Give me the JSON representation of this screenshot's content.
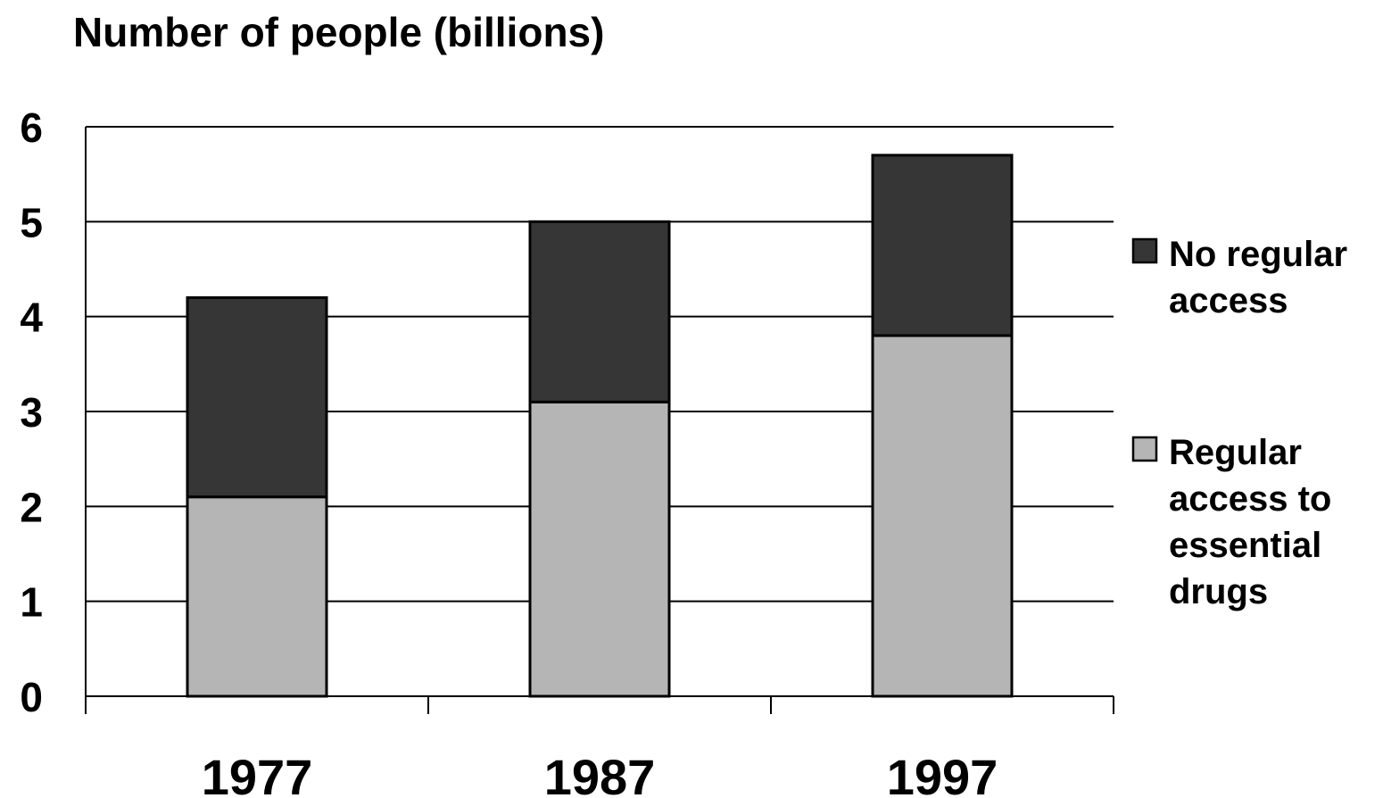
{
  "chart_data": {
    "type": "bar",
    "stacked": true,
    "title": "Number of people (billions)",
    "xlabel": "",
    "ylabel": "",
    "categories": [
      "1977",
      "1987",
      "1997"
    ],
    "ylim": [
      0,
      6
    ],
    "yticks": [
      "0",
      "1",
      "2",
      "3",
      "4",
      "5",
      "6"
    ],
    "grid": true,
    "legend_position": "right",
    "series": [
      {
        "name": "Regular access to essential drugs",
        "legend_lines": [
          "Regular",
          "access to",
          "essential",
          "drugs"
        ],
        "color": "#b5b5b5",
        "values": [
          2.1,
          3.1,
          3.8
        ]
      },
      {
        "name": "No regular access",
        "legend_lines": [
          "No regular",
          "access"
        ],
        "color": "#363636",
        "values": [
          2.1,
          1.9,
          1.9
        ]
      }
    ]
  }
}
